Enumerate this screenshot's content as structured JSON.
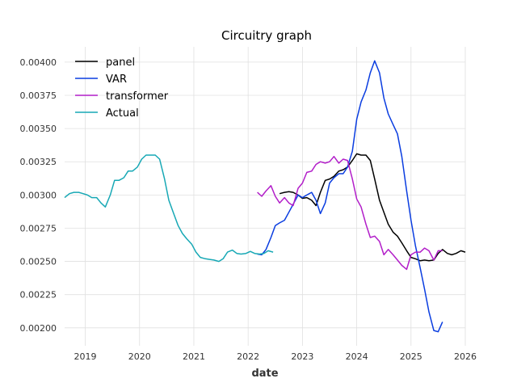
{
  "chart_data": {
    "type": "line",
    "title": "Circuitry graph",
    "xlabel": "date",
    "ylabel": "",
    "xlim": [
      2018.62,
      2026.0
    ],
    "ylim": [
      0.001865,
      0.004115
    ],
    "x_ticks": [
      {
        "value": 2019,
        "label": "2019"
      },
      {
        "value": 2020,
        "label": "2020"
      },
      {
        "value": 2021,
        "label": "2021"
      },
      {
        "value": 2022,
        "label": "2022"
      },
      {
        "value": 2023,
        "label": "2023"
      },
      {
        "value": 2024,
        "label": "2024"
      },
      {
        "value": 2025,
        "label": "2025"
      },
      {
        "value": 2026,
        "label": "2026"
      }
    ],
    "y_ticks": [
      {
        "value": 0.002,
        "label": "0.00200"
      },
      {
        "value": 0.00225,
        "label": "0.00225"
      },
      {
        "value": 0.0025,
        "label": "0.00250"
      },
      {
        "value": 0.00275,
        "label": "0.00275"
      },
      {
        "value": 0.003,
        "label": "0.00300"
      },
      {
        "value": 0.00325,
        "label": "0.00325"
      },
      {
        "value": 0.0035,
        "label": "0.00350"
      },
      {
        "value": 0.00375,
        "label": "0.00375"
      },
      {
        "value": 0.004,
        "label": "0.00400"
      }
    ],
    "grid": true,
    "legend_position": "top-left",
    "series": [
      {
        "name": "panel",
        "color": "#000000",
        "points": [
          [
            2022.58,
            0.00301
          ],
          [
            2022.67,
            0.00302
          ],
          [
            2022.75,
            0.003025
          ],
          [
            2022.83,
            0.00302
          ],
          [
            2022.92,
            0.003
          ],
          [
            2023.0,
            0.002975
          ],
          [
            2023.08,
            0.00298
          ],
          [
            2023.17,
            0.00296
          ],
          [
            2023.25,
            0.00292
          ],
          [
            2023.33,
            0.00302
          ],
          [
            2023.42,
            0.00311
          ],
          [
            2023.5,
            0.00312
          ],
          [
            2023.58,
            0.00314
          ],
          [
            2023.67,
            0.00318
          ],
          [
            2023.75,
            0.00319
          ],
          [
            2023.83,
            0.00321
          ],
          [
            2023.92,
            0.00326
          ],
          [
            2024.0,
            0.00331
          ],
          [
            2024.08,
            0.0033
          ],
          [
            2024.17,
            0.0033
          ],
          [
            2024.25,
            0.00326
          ],
          [
            2024.33,
            0.00312
          ],
          [
            2024.42,
            0.00296
          ],
          [
            2024.5,
            0.00287
          ],
          [
            2024.58,
            0.00278
          ],
          [
            2024.67,
            0.00272
          ],
          [
            2024.75,
            0.00269
          ],
          [
            2024.83,
            0.00264
          ],
          [
            2024.92,
            0.00258
          ],
          [
            2025.0,
            0.00253
          ],
          [
            2025.08,
            0.00252
          ],
          [
            2025.17,
            0.002505
          ],
          [
            2025.25,
            0.00251
          ],
          [
            2025.33,
            0.002505
          ],
          [
            2025.42,
            0.00251
          ],
          [
            2025.5,
            0.00256
          ],
          [
            2025.58,
            0.00259
          ],
          [
            2025.67,
            0.00256
          ],
          [
            2025.75,
            0.00255
          ],
          [
            2025.83,
            0.00256
          ],
          [
            2025.92,
            0.00258
          ],
          [
            2026.0,
            0.00257
          ]
        ]
      },
      {
        "name": "VAR",
        "color": "#0a3de0",
        "points": [
          [
            2022.17,
            0.002555
          ],
          [
            2022.25,
            0.00255
          ],
          [
            2022.33,
            0.00259
          ],
          [
            2022.42,
            0.00268
          ],
          [
            2022.5,
            0.00277
          ],
          [
            2022.58,
            0.00279
          ],
          [
            2022.67,
            0.00281
          ],
          [
            2022.75,
            0.00287
          ],
          [
            2022.83,
            0.00293
          ],
          [
            2022.92,
            0.003
          ],
          [
            2023.0,
            0.00298
          ],
          [
            2023.08,
            0.003
          ],
          [
            2023.17,
            0.00302
          ],
          [
            2023.25,
            0.00296
          ],
          [
            2023.33,
            0.00286
          ],
          [
            2023.42,
            0.00294
          ],
          [
            2023.5,
            0.00309
          ],
          [
            2023.58,
            0.00313
          ],
          [
            2023.67,
            0.00316
          ],
          [
            2023.75,
            0.00316
          ],
          [
            2023.83,
            0.00321
          ],
          [
            2023.92,
            0.00333
          ],
          [
            2024.0,
            0.00357
          ],
          [
            2024.08,
            0.0037
          ],
          [
            2024.17,
            0.00379
          ],
          [
            2024.25,
            0.00392
          ],
          [
            2024.33,
            0.00401
          ],
          [
            2024.42,
            0.00392
          ],
          [
            2024.5,
            0.00373
          ],
          [
            2024.58,
            0.00361
          ],
          [
            2024.67,
            0.00353
          ],
          [
            2024.75,
            0.00346
          ],
          [
            2024.83,
            0.00329
          ],
          [
            2024.92,
            0.00303
          ],
          [
            2025.0,
            0.00281
          ],
          [
            2025.08,
            0.00262
          ],
          [
            2025.17,
            0.00245
          ],
          [
            2025.25,
            0.00229
          ],
          [
            2025.33,
            0.00212
          ],
          [
            2025.42,
            0.00198
          ],
          [
            2025.5,
            0.00197
          ],
          [
            2025.58,
            0.002045
          ]
        ]
      },
      {
        "name": "transformer",
        "color": "#b21ec9",
        "points": [
          [
            2022.17,
            0.00302
          ],
          [
            2022.25,
            0.00299
          ],
          [
            2022.33,
            0.00303
          ],
          [
            2022.42,
            0.00307
          ],
          [
            2022.5,
            0.00299
          ],
          [
            2022.58,
            0.00294
          ],
          [
            2022.67,
            0.00298
          ],
          [
            2022.75,
            0.00294
          ],
          [
            2022.83,
            0.00292
          ],
          [
            2022.92,
            0.00305
          ],
          [
            2023.0,
            0.00309
          ],
          [
            2023.08,
            0.00317
          ],
          [
            2023.17,
            0.00318
          ],
          [
            2023.25,
            0.00323
          ],
          [
            2023.33,
            0.00325
          ],
          [
            2023.42,
            0.00324
          ],
          [
            2023.5,
            0.00325
          ],
          [
            2023.58,
            0.00329
          ],
          [
            2023.67,
            0.00324
          ],
          [
            2023.75,
            0.00327
          ],
          [
            2023.83,
            0.00326
          ],
          [
            2023.92,
            0.00312
          ],
          [
            2024.0,
            0.00297
          ],
          [
            2024.08,
            0.00291
          ],
          [
            2024.17,
            0.00278
          ],
          [
            2024.25,
            0.00268
          ],
          [
            2024.33,
            0.00269
          ],
          [
            2024.42,
            0.00265
          ],
          [
            2024.5,
            0.00255
          ],
          [
            2024.58,
            0.00259
          ],
          [
            2024.67,
            0.00255
          ],
          [
            2024.75,
            0.00251
          ],
          [
            2024.83,
            0.00247
          ],
          [
            2024.92,
            0.00244
          ],
          [
            2025.0,
            0.00255
          ],
          [
            2025.08,
            0.00257
          ],
          [
            2025.17,
            0.00257
          ],
          [
            2025.25,
            0.0026
          ],
          [
            2025.33,
            0.00258
          ],
          [
            2025.42,
            0.00251
          ],
          [
            2025.5,
            0.00258
          ],
          [
            2025.58,
            0.00258
          ]
        ]
      },
      {
        "name": "Actual",
        "color": "#17a8b5",
        "points": [
          [
            2018.62,
            0.00298
          ],
          [
            2018.71,
            0.00301
          ],
          [
            2018.79,
            0.00302
          ],
          [
            2018.88,
            0.00302
          ],
          [
            2018.96,
            0.00301
          ],
          [
            2019.04,
            0.003
          ],
          [
            2019.12,
            0.00298
          ],
          [
            2019.21,
            0.00298
          ],
          [
            2019.29,
            0.00294
          ],
          [
            2019.37,
            0.00291
          ],
          [
            2019.46,
            0.003
          ],
          [
            2019.54,
            0.00311
          ],
          [
            2019.62,
            0.00311
          ],
          [
            2019.71,
            0.00313
          ],
          [
            2019.79,
            0.00318
          ],
          [
            2019.87,
            0.00318
          ],
          [
            2019.96,
            0.00321
          ],
          [
            2020.04,
            0.00327
          ],
          [
            2020.12,
            0.0033
          ],
          [
            2020.21,
            0.0033
          ],
          [
            2020.29,
            0.0033
          ],
          [
            2020.37,
            0.00327
          ],
          [
            2020.46,
            0.00312
          ],
          [
            2020.54,
            0.00296
          ],
          [
            2020.62,
            0.00287
          ],
          [
            2020.71,
            0.00277
          ],
          [
            2020.79,
            0.00271
          ],
          [
            2020.87,
            0.00267
          ],
          [
            2020.96,
            0.00263
          ],
          [
            2021.04,
            0.00257
          ],
          [
            2021.12,
            0.00253
          ],
          [
            2021.21,
            0.00252
          ],
          [
            2021.29,
            0.002515
          ],
          [
            2021.37,
            0.00251
          ],
          [
            2021.46,
            0.0025
          ],
          [
            2021.54,
            0.00252
          ],
          [
            2021.62,
            0.00257
          ],
          [
            2021.71,
            0.002585
          ],
          [
            2021.79,
            0.00256
          ],
          [
            2021.87,
            0.002555
          ],
          [
            2021.96,
            0.00256
          ],
          [
            2022.04,
            0.002575
          ],
          [
            2022.12,
            0.00256
          ],
          [
            2022.21,
            0.002555
          ],
          [
            2022.29,
            0.00256
          ],
          [
            2022.37,
            0.00258
          ],
          [
            2022.46,
            0.00257
          ]
        ]
      }
    ]
  }
}
